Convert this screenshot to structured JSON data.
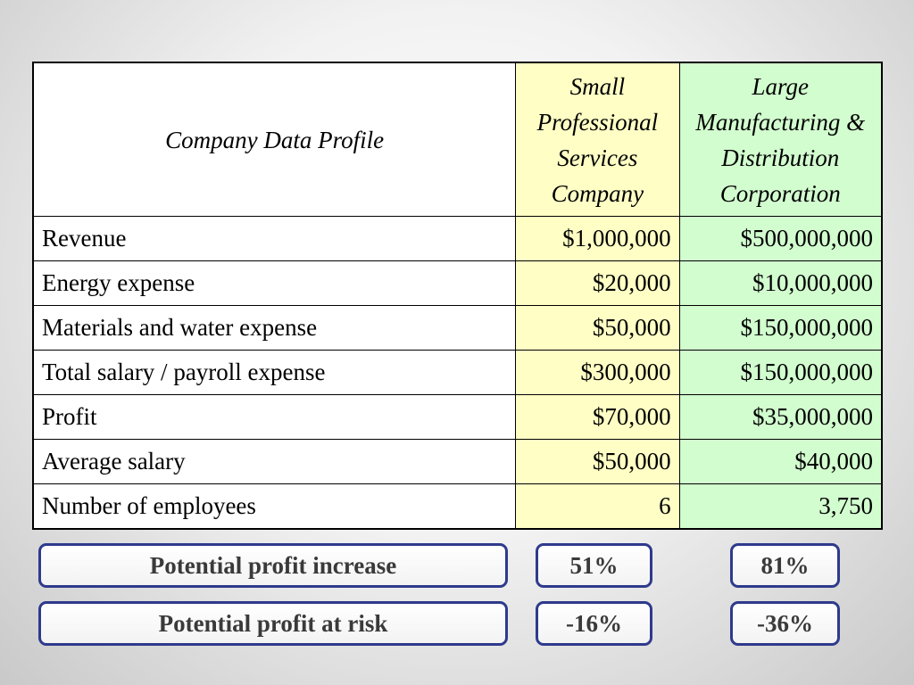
{
  "table": {
    "header": {
      "label": "Company Data Profile",
      "small_company": "Small Professional Services Company",
      "large_company": "Large Manufacturing & Distribution Corporation"
    },
    "rows": [
      {
        "label": "Revenue",
        "small": "$1,000,000",
        "large": "$500,000,000"
      },
      {
        "label": "Energy expense",
        "small": "$20,000",
        "large": "$10,000,000"
      },
      {
        "label": "Materials and water expense",
        "small": "$50,000",
        "large": "$150,000,000"
      },
      {
        "label": "Total salary / payroll expense",
        "small": "$300,000",
        "large": "$150,000,000"
      },
      {
        "label": "Profit",
        "small": "$70,000",
        "large": "$35,000,000"
      },
      {
        "label": "Average salary",
        "small": "$50,000",
        "large": "$40,000"
      },
      {
        "label": "Number of  employees",
        "small": "6",
        "large": "3,750"
      }
    ]
  },
  "results": [
    {
      "label": "Potential  profit increase",
      "small": "51%",
      "large": "81%"
    },
    {
      "label": "Potential profit at risk",
      "small": "-16%",
      "large": "-36%"
    }
  ],
  "colors": {
    "small_column": "#ffffc5",
    "large_column": "#d2fdcf",
    "box_border": "#2e3a8c"
  }
}
